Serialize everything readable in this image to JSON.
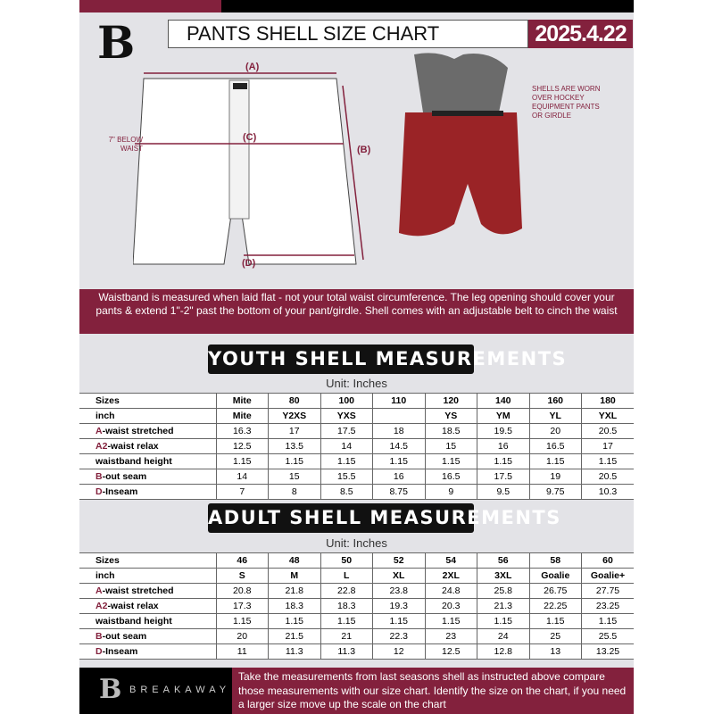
{
  "header": {
    "title": "PANTS SHELL SIZE CHART",
    "date": "2025.4.22",
    "logo_letter": "B"
  },
  "diagram": {
    "label_a": "(A)",
    "label_b": "(B)",
    "label_c": "(C)",
    "label_d": "(D)",
    "waist_note": "7\" BELOW\nWAIST",
    "shell_note": "SHELLS ARE WORN\nOVER HOCKEY\nEQUIPMENT PANTS\nOR GIRDLE"
  },
  "band_text": "Waistband is measured when laid flat - not your total waist circumference. The leg opening should cover your pants & extend 1\"-2\" past the bottom of your pant/girdle. Shell comes with an adjustable belt to cinch the waist",
  "youth": {
    "title": "YOUTH SHELL MEASUREMENTS",
    "unit": "Unit: Inches",
    "rows": [
      {
        "prefix": "",
        "label": "Sizes",
        "cells": [
          "Mite",
          "80",
          "100",
          "110",
          "120",
          "140",
          "160",
          "180"
        ]
      },
      {
        "prefix": "",
        "label": "inch",
        "cells": [
          "Mite",
          "Y2XS",
          "YXS",
          "",
          "YS",
          "YM",
          "YL",
          "YXL"
        ]
      },
      {
        "prefix": "A",
        "label": "-waist stretched",
        "cells": [
          "16.3",
          "17",
          "17.5",
          "18",
          "18.5",
          "19.5",
          "20",
          "20.5"
        ]
      },
      {
        "prefix": "A2",
        "label": "-waist relax",
        "cells": [
          "12.5",
          "13.5",
          "14",
          "14.5",
          "15",
          "16",
          "16.5",
          "17"
        ]
      },
      {
        "prefix": "",
        "label": "waistband height",
        "cells": [
          "1.15",
          "1.15",
          "1.15",
          "1.15",
          "1.15",
          "1.15",
          "1.15",
          "1.15"
        ]
      },
      {
        "prefix": "B",
        "label": "-out seam",
        "cells": [
          "14",
          "15",
          "15.5",
          "16",
          "16.5",
          "17.5",
          "19",
          "20.5"
        ]
      },
      {
        "prefix": "D",
        "label": "-Inseam",
        "cells": [
          "7",
          "8",
          "8.5",
          "8.75",
          "9",
          "9.5",
          "9.75",
          "10.3"
        ]
      }
    ]
  },
  "adult": {
    "title": "ADULT SHELL MEASUREMENTS",
    "unit": "Unit: Inches",
    "rows": [
      {
        "prefix": "",
        "label": "Sizes",
        "cells": [
          "46",
          "48",
          "50",
          "52",
          "54",
          "56",
          "58",
          "60"
        ]
      },
      {
        "prefix": "",
        "label": "inch",
        "cells": [
          "S",
          "M",
          "L",
          "XL",
          "2XL",
          "3XL",
          "Goalie",
          "Goalie+"
        ]
      },
      {
        "prefix": "A",
        "label": "-waist stretched",
        "cells": [
          "20.8",
          "21.8",
          "22.8",
          "23.8",
          "24.8",
          "25.8",
          "26.75",
          "27.75"
        ]
      },
      {
        "prefix": "A2",
        "label": "-waist relax",
        "cells": [
          "17.3",
          "18.3",
          "18.3",
          "19.3",
          "20.3",
          "21.3",
          "22.25",
          "23.25"
        ]
      },
      {
        "prefix": "",
        "label": "waistband height",
        "cells": [
          "1.15",
          "1.15",
          "1.15",
          "1.15",
          "1.15",
          "1.15",
          "1.15",
          "1.15"
        ]
      },
      {
        "prefix": "B",
        "label": "-out seam",
        "cells": [
          "20",
          "21.5",
          "21",
          "22.3",
          "23",
          "24",
          "25",
          "25.5"
        ]
      },
      {
        "prefix": "D",
        "label": "-Inseam",
        "cells": [
          "11",
          "11.3",
          "11.3",
          "12",
          "12.5",
          "12.8",
          "13",
          "13.25"
        ]
      }
    ]
  },
  "footer": {
    "brand": "BREAKAWAY",
    "text": "Take the measurements from last seasons shell as instructed above compare those measurements  with our size chart. Identify the size on the chart, if you need a larger size move up the scale on the chart"
  },
  "colors": {
    "maroon": "#83213d",
    "black": "#000000",
    "background": "#e3e3e7"
  }
}
